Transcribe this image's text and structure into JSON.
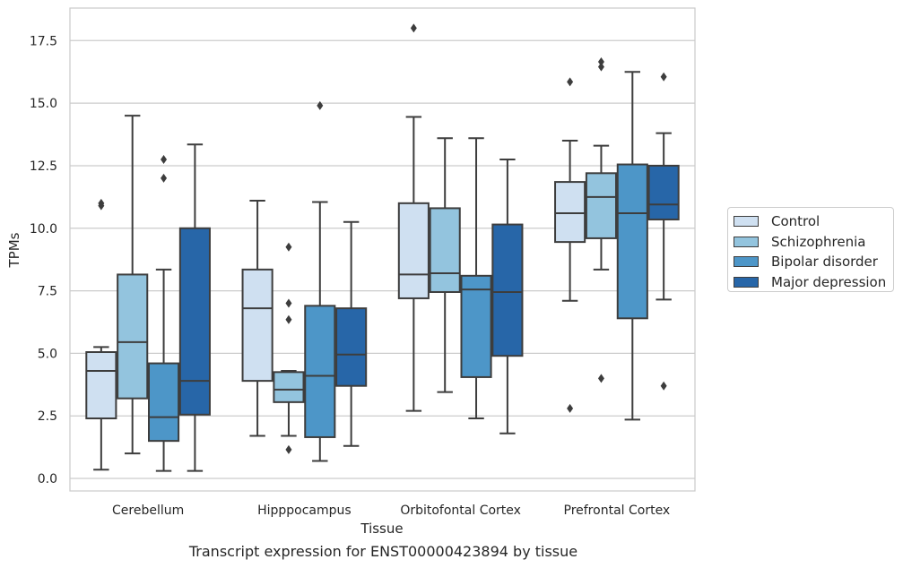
{
  "chart_data": {
    "type": "box",
    "caption": "Transcript expression for ENST00000423894 by tissue",
    "xlabel": "Tissue",
    "ylabel": "TPMs",
    "ylim": [
      -0.5,
      18.8
    ],
    "yticks": [
      "0.0",
      "2.5",
      "5.0",
      "7.5",
      "10.0",
      "12.5",
      "15.0",
      "17.5"
    ],
    "grid": "horizontal",
    "legend_position": "right",
    "categories": [
      "Cerebellum",
      "Hipppocampus",
      "Orbitofontal Cortex",
      "Prefrontal Cortex"
    ],
    "series": [
      {
        "name": "Control",
        "color": "#cfe0f1",
        "boxes": [
          {
            "whislo": 0.35,
            "q1": 2.4,
            "med": 4.3,
            "q3": 5.05,
            "whishi": 5.25,
            "fliers": [
              10.9,
              11.0
            ]
          },
          {
            "whislo": 1.7,
            "q1": 3.9,
            "med": 6.8,
            "q3": 8.35,
            "whishi": 11.1,
            "fliers": []
          },
          {
            "whislo": 2.7,
            "q1": 7.2,
            "med": 8.15,
            "q3": 11.0,
            "whishi": 14.45,
            "fliers": [
              18.0
            ]
          },
          {
            "whislo": 7.1,
            "q1": 9.45,
            "med": 10.6,
            "q3": 11.85,
            "whishi": 13.5,
            "fliers": [
              15.85,
              2.8
            ]
          }
        ]
      },
      {
        "name": "Schizophrenia",
        "color": "#93c4de",
        "boxes": [
          {
            "whislo": 1.0,
            "q1": 3.2,
            "med": 5.45,
            "q3": 8.15,
            "whishi": 14.5,
            "fliers": []
          },
          {
            "whislo": 1.7,
            "q1": 3.05,
            "med": 3.55,
            "q3": 4.25,
            "whishi": 4.3,
            "fliers": [
              9.25,
              7.0,
              6.35,
              1.15
            ]
          },
          {
            "whislo": 3.45,
            "q1": 7.45,
            "med": 8.2,
            "q3": 10.8,
            "whishi": 13.6,
            "fliers": []
          },
          {
            "whislo": 8.35,
            "q1": 9.6,
            "med": 11.25,
            "q3": 12.2,
            "whishi": 13.3,
            "fliers": [
              16.65,
              16.45,
              4.0
            ]
          }
        ]
      },
      {
        "name": "Bipolar disorder",
        "color": "#4d96c8",
        "boxes": [
          {
            "whislo": 0.3,
            "q1": 1.5,
            "med": 2.45,
            "q3": 4.6,
            "whishi": 8.35,
            "fliers": [
              12.75,
              12.0
            ]
          },
          {
            "whislo": 0.7,
            "q1": 1.65,
            "med": 4.1,
            "q3": 6.9,
            "whishi": 11.05,
            "fliers": [
              14.9
            ]
          },
          {
            "whislo": 2.4,
            "q1": 4.05,
            "med": 7.55,
            "q3": 8.1,
            "whishi": 13.6,
            "fliers": []
          },
          {
            "whislo": 2.35,
            "q1": 6.4,
            "med": 10.6,
            "q3": 12.55,
            "whishi": 16.25,
            "fliers": []
          }
        ]
      },
      {
        "name": "Major depression",
        "color": "#2766a8",
        "boxes": [
          {
            "whislo": 0.3,
            "q1": 2.55,
            "med": 3.9,
            "q3": 10.0,
            "whishi": 13.35,
            "fliers": []
          },
          {
            "whislo": 1.3,
            "q1": 3.7,
            "med": 4.95,
            "q3": 6.8,
            "whishi": 10.25,
            "fliers": []
          },
          {
            "whislo": 1.8,
            "q1": 4.9,
            "med": 7.45,
            "q3": 10.15,
            "whishi": 12.75,
            "fliers": []
          },
          {
            "whislo": 7.15,
            "q1": 10.35,
            "med": 10.95,
            "q3": 12.5,
            "whishi": 13.8,
            "fliers": [
              16.05,
              3.7
            ]
          }
        ]
      }
    ]
  }
}
